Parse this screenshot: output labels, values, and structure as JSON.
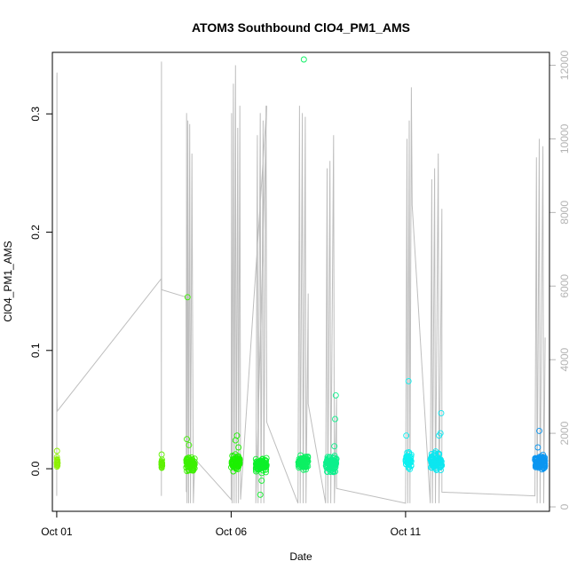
{
  "chart_data": {
    "type": "scatter",
    "title": "ATOM3 Southbound ClO4_PM1_AMS",
    "xlabel": "Date",
    "ylabel": "ClO4_PM1_AMS",
    "xlim": [
      "2017-09-30T21:00",
      "2017-10-15T03:00"
    ],
    "ylim": [
      -0.036,
      0.352
    ],
    "y2lim": [
      -120,
      12350
    ],
    "x_ticks": [
      {
        "date": "2017-10-01T00:00",
        "label": "Oct 01"
      },
      {
        "date": "2017-10-06T00:00",
        "label": "Oct 06"
      },
      {
        "date": "2017-10-11T00:00",
        "label": "Oct 11"
      }
    ],
    "y_ticks": [
      {
        "value": 0.0,
        "label": "0.0"
      },
      {
        "value": 0.1,
        "label": "0.1"
      },
      {
        "value": 0.2,
        "label": "0.2"
      },
      {
        "value": 0.3,
        "label": "0.3"
      }
    ],
    "y2_ticks": [
      {
        "value": 0,
        "label": "0"
      },
      {
        "value": 2000,
        "label": "2000"
      },
      {
        "value": 4000,
        "label": "4000"
      },
      {
        "value": 6000,
        "label": "6000"
      },
      {
        "value": 8000,
        "label": "8000"
      },
      {
        "value": 10000,
        "label": "10000"
      },
      {
        "value": 12000,
        "label": "12000"
      }
    ],
    "grid": false,
    "legend": "none",
    "series": [
      {
        "kind": "scatter",
        "axis": "left",
        "marker": "open-circle",
        "color_note": "color varies with time: yellow-green to blue",
        "flights": [
          {
            "start": "2017-10-01T00:00",
            "end": "2017-10-01T00:25",
            "y_min": -0.002,
            "y_max": 0.012,
            "color": "#8cf000",
            "outliers": [
              {
                "x": "2017-10-01T00:10",
                "y": 0.015
              }
            ]
          },
          {
            "start": "2017-10-04T00:00",
            "end": "2017-10-04T00:30",
            "y_min": -0.002,
            "y_max": 0.009,
            "color": "#5ef000",
            "outliers": [
              {
                "x": "2017-10-04T00:10",
                "y": 0.012
              }
            ]
          },
          {
            "start": "2017-10-04T17:00",
            "end": "2017-10-04T23:00",
            "y_min": -0.004,
            "y_max": 0.012,
            "color": "#3cf000",
            "outliers": [
              {
                "x": "2017-10-04T18:00",
                "y": 0.145
              },
              {
                "x": "2017-10-04T17:30",
                "y": 0.025
              },
              {
                "x": "2017-10-04T19:00",
                "y": 0.02
              }
            ]
          },
          {
            "start": "2017-10-06T00:00",
            "end": "2017-10-06T06:00",
            "y_min": -0.004,
            "y_max": 0.014,
            "color": "#1cf000",
            "outliers": [
              {
                "x": "2017-10-06T04:00",
                "y": 0.028
              },
              {
                "x": "2017-10-06T03:00",
                "y": 0.024
              },
              {
                "x": "2017-10-06T05:00",
                "y": 0.018
              }
            ]
          },
          {
            "start": "2017-10-06T17:00",
            "end": "2017-10-07T00:30",
            "y_min": -0.005,
            "y_max": 0.012,
            "color": "#0cf02a",
            "outliers": [
              {
                "x": "2017-10-06T20:00",
                "y": -0.022
              },
              {
                "x": "2017-10-06T21:00",
                "y": -0.01
              }
            ]
          },
          {
            "start": "2017-10-07T22:00",
            "end": "2017-10-08T05:00",
            "y_min": -0.002,
            "y_max": 0.013,
            "color": "#0cf063",
            "outliers": [
              {
                "x": "2017-10-08T02:00",
                "y": 0.346
              }
            ]
          },
          {
            "start": "2017-10-08T17:00",
            "end": "2017-10-09T00:30",
            "y_min": -0.005,
            "y_max": 0.013,
            "color": "#0cf08c",
            "outliers": [
              {
                "x": "2017-10-09T00:00",
                "y": 0.062
              },
              {
                "x": "2017-10-08T23:30",
                "y": 0.042
              },
              {
                "x": "2017-10-08T23:00",
                "y": 0.019
              }
            ]
          },
          {
            "start": "2017-10-11T00:00",
            "end": "2017-10-11T04:00",
            "y_min": -0.003,
            "y_max": 0.016,
            "color": "#0cf0f0",
            "outliers": [
              {
                "x": "2017-10-11T02:00",
                "y": 0.074
              },
              {
                "x": "2017-10-11T00:30",
                "y": 0.028
              }
            ]
          },
          {
            "start": "2017-10-11T17:00",
            "end": "2017-10-12T01:00",
            "y_min": -0.004,
            "y_max": 0.016,
            "color": "#0ce6f0",
            "outliers": [
              {
                "x": "2017-10-12T00:30",
                "y": 0.047
              },
              {
                "x": "2017-10-12T00:00",
                "y": 0.03
              },
              {
                "x": "2017-10-11T23:00",
                "y": 0.028
              }
            ]
          },
          {
            "start": "2017-10-14T17:00",
            "end": "2017-10-14T23:59",
            "y_min": -0.004,
            "y_max": 0.014,
            "color": "#0c96f0",
            "outliers": [
              {
                "x": "2017-10-14T20:00",
                "y": 0.032
              },
              {
                "x": "2017-10-14T19:00",
                "y": 0.018
              }
            ]
          }
        ]
      },
      {
        "kind": "line",
        "axis": "right",
        "color": "#bebebe",
        "units_note": "altitude-like trace on right axis",
        "points": [
          [
            "2017-10-01T00:00",
            300
          ],
          [
            "2017-10-01T00:03",
            3500
          ],
          [
            "2017-10-01T00:06",
            11700
          ],
          [
            "2017-10-01T00:09",
            11800
          ],
          [
            "2017-10-01T00:12",
            3000
          ],
          [
            "2017-10-01T00:20",
            2600
          ],
          [
            "2017-10-03T23:55",
            6200
          ],
          [
            "2017-10-04T00:00",
            300
          ],
          [
            "2017-10-04T00:04",
            12100
          ],
          [
            "2017-10-04T00:10",
            5900
          ],
          [
            "2017-10-04T17:00",
            5700
          ],
          [
            "2017-10-04T17:10",
            400
          ],
          [
            "2017-10-04T17:20",
            10700
          ],
          [
            "2017-10-04T17:40",
            100
          ],
          [
            "2017-10-04T18:10",
            10500
          ],
          [
            "2017-10-04T18:40",
            100
          ],
          [
            "2017-10-04T19:30",
            10400
          ],
          [
            "2017-10-04T20:00",
            100
          ],
          [
            "2017-10-04T21:00",
            9600
          ],
          [
            "2017-10-04T22:00",
            100
          ],
          [
            "2017-10-04T23:00",
            1300
          ],
          [
            "2017-10-06T00:00",
            200
          ],
          [
            "2017-10-06T00:20",
            10700
          ],
          [
            "2017-10-06T00:40",
            100
          ],
          [
            "2017-10-06T01:30",
            11500
          ],
          [
            "2017-10-06T02:00",
            100
          ],
          [
            "2017-10-06T03:00",
            12000
          ],
          [
            "2017-10-06T03:30",
            100
          ],
          [
            "2017-10-06T04:30",
            10300
          ],
          [
            "2017-10-06T05:00",
            100
          ],
          [
            "2017-10-06T06:00",
            10900
          ],
          [
            "2017-10-06T06:30",
            200
          ],
          [
            "2017-10-07T00:30",
            10900
          ],
          [
            "2017-10-06T17:00",
            100
          ],
          [
            "2017-10-06T18:00",
            10100
          ],
          [
            "2017-10-06T18:30",
            100
          ],
          [
            "2017-10-06T20:00",
            10700
          ],
          [
            "2017-10-06T20:30",
            100
          ],
          [
            "2017-10-06T22:00",
            10500
          ],
          [
            "2017-10-06T22:30",
            100
          ],
          [
            "2017-10-07T00:00",
            10900
          ],
          [
            "2017-10-07T00:30",
            2300
          ],
          [
            "2017-10-07T22:00",
            100
          ],
          [
            "2017-10-07T23:00",
            10900
          ],
          [
            "2017-10-07T23:30",
            100
          ],
          [
            "2017-10-08T01:00",
            10700
          ],
          [
            "2017-10-08T01:30",
            100
          ],
          [
            "2017-10-08T03:00",
            10600
          ],
          [
            "2017-10-08T03:30",
            100
          ],
          [
            "2017-10-08T05:00",
            5800
          ],
          [
            "2017-10-08T05:00",
            2800
          ],
          [
            "2017-10-08T17:00",
            100
          ],
          [
            "2017-10-08T18:00",
            9200
          ],
          [
            "2017-10-08T18:30",
            100
          ],
          [
            "2017-10-08T20:00",
            9400
          ],
          [
            "2017-10-08T20:30",
            100
          ],
          [
            "2017-10-08T22:30",
            10100
          ],
          [
            "2017-10-08T23:00",
            100
          ],
          [
            "2017-10-09T00:30",
            3000
          ],
          [
            "2017-10-09T00:30",
            500
          ],
          [
            "2017-10-11T00:00",
            100
          ],
          [
            "2017-10-11T01:00",
            10000
          ],
          [
            "2017-10-11T01:30",
            100
          ],
          [
            "2017-10-11T02:30",
            10500
          ],
          [
            "2017-10-11T03:00",
            100
          ],
          [
            "2017-10-11T04:00",
            11400
          ],
          [
            "2017-10-11T04:30",
            8200
          ],
          [
            "2017-10-11T17:00",
            100
          ],
          [
            "2017-10-11T18:00",
            8900
          ],
          [
            "2017-10-11T18:30",
            100
          ],
          [
            "2017-10-11T20:00",
            9200
          ],
          [
            "2017-10-11T20:30",
            100
          ],
          [
            "2017-10-11T22:30",
            9600
          ],
          [
            "2017-10-11T23:00",
            100
          ],
          [
            "2017-10-12T01:00",
            8100
          ],
          [
            "2017-10-12T01:00",
            400
          ],
          [
            "2017-10-14T17:00",
            300
          ],
          [
            "2017-10-14T18:00",
            9500
          ],
          [
            "2017-10-14T18:30",
            100
          ],
          [
            "2017-10-14T20:00",
            10000
          ],
          [
            "2017-10-14T20:30",
            100
          ],
          [
            "2017-10-14T22:30",
            9800
          ],
          [
            "2017-10-14T23:00",
            100
          ],
          [
            "2017-10-14T23:59",
            4600
          ]
        ]
      }
    ]
  }
}
